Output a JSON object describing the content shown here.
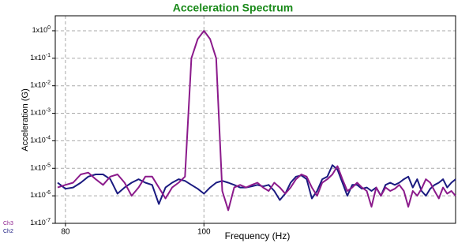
{
  "chart_data": {
    "type": "line",
    "title": "Acceleration Spectrum",
    "xlabel": "Frequency (Hz)",
    "ylabel": "Acceleration (G)",
    "xscale": "log",
    "yscale": "log",
    "grid": true,
    "xlim": [
      78.7,
      150
    ],
    "xticks": [
      80,
      100
    ],
    "ylim": [
      1e-07,
      3.5
    ],
    "yticks": [
      {
        "value": 1e-07,
        "label": "1x10",
        "exponent": "-7"
      },
      {
        "value": 1e-06,
        "label": "1x10",
        "exponent": "-6"
      },
      {
        "value": 1e-05,
        "label": "1x10",
        "exponent": "-5"
      },
      {
        "value": 0.0001,
        "label": "1x10",
        "exponent": "-4"
      },
      {
        "value": 0.001,
        "label": "1x10",
        "exponent": "-3"
      },
      {
        "value": 0.01,
        "label": "1x10",
        "exponent": "-2"
      },
      {
        "value": 0.1,
        "label": "1x10",
        "exponent": "-1"
      },
      {
        "value": 1,
        "label": "1x10",
        "exponent": "0"
      }
    ],
    "x": [
      79,
      80,
      81,
      82,
      83,
      84,
      85,
      86,
      87,
      88,
      89,
      90,
      91,
      92,
      93,
      94,
      95,
      96,
      97,
      98,
      99,
      100,
      101,
      102,
      103,
      104,
      105,
      106,
      107,
      108,
      109,
      110,
      111,
      112,
      113,
      114,
      115,
      116,
      117,
      118,
      119,
      120,
      121,
      122,
      123,
      124,
      125,
      126,
      127,
      128,
      129,
      130,
      131,
      132,
      133,
      134,
      135,
      136,
      137,
      138,
      139,
      140,
      141,
      142,
      143,
      144,
      145,
      146,
      147,
      148,
      149,
      150
    ],
    "series": [
      {
        "name": "Ch3",
        "color": "#8b1a8b",
        "values": [
          2e-06,
          2.5e-06,
          3e-06,
          6e-06,
          7e-06,
          4e-06,
          2.5e-06,
          5e-06,
          6e-06,
          3e-06,
          1e-06,
          2e-06,
          5e-06,
          5e-06,
          2e-06,
          8e-07,
          2e-06,
          3e-06,
          5e-06,
          0.1,
          0.5,
          1,
          0.5,
          0.1,
          1.5e-06,
          3e-07,
          2e-06,
          2.5e-06,
          2e-06,
          2.5e-06,
          3e-06,
          2e-06,
          1.5e-06,
          3e-06,
          2e-06,
          1.2e-06,
          2e-06,
          4e-06,
          6e-06,
          5e-06,
          2e-06,
          1e-06,
          3e-06,
          4e-06,
          6e-06,
          1.2e-05,
          4e-06,
          1.5e-06,
          2e-06,
          3e-06,
          2e-06,
          1.5e-06,
          4e-07,
          2e-06,
          1e-06,
          2e-06,
          1.5e-06,
          1.8e-06,
          2.5e-06,
          1.5e-06,
          4e-07,
          1.5e-06,
          1e-06,
          1.8e-06,
          4e-06,
          3e-06,
          1.5e-06,
          8e-07,
          2e-06,
          1.2e-06,
          1.5e-06,
          1e-06
        ]
      },
      {
        "name": "Ch2",
        "color": "#1a1a80",
        "values": [
          3e-06,
          1.8e-06,
          2e-06,
          3e-06,
          5e-06,
          6e-06,
          6e-06,
          4e-06,
          1.2e-06,
          2e-06,
          3e-06,
          4e-06,
          3e-06,
          2.5e-06,
          5e-07,
          2e-06,
          3e-06,
          4e-06,
          3.5e-06,
          2.5e-06,
          1.8e-06,
          1.2e-06,
          2e-06,
          3e-06,
          3.5e-06,
          3e-06,
          2.5e-06,
          2e-06,
          2e-06,
          2.2e-06,
          2.5e-06,
          2.2e-06,
          2.5e-06,
          1.5e-06,
          7e-07,
          1.2e-06,
          3e-06,
          5e-06,
          5.5e-06,
          4e-06,
          8e-07,
          1.5e-06,
          4e-06,
          5e-06,
          1.3e-05,
          9e-06,
          3e-06,
          1e-06,
          2.5e-06,
          2.5e-06,
          1.8e-06,
          2e-06,
          1.5e-06,
          2e-06,
          1e-06,
          2.5e-06,
          3e-06,
          2.5e-06,
          3e-06,
          4e-06,
          5e-06,
          2e-06,
          4e-06,
          1.5e-06,
          1e-06,
          1.8e-06,
          2.5e-06,
          3e-06,
          4e-06,
          2e-06,
          3e-06,
          4e-06
        ]
      }
    ]
  }
}
